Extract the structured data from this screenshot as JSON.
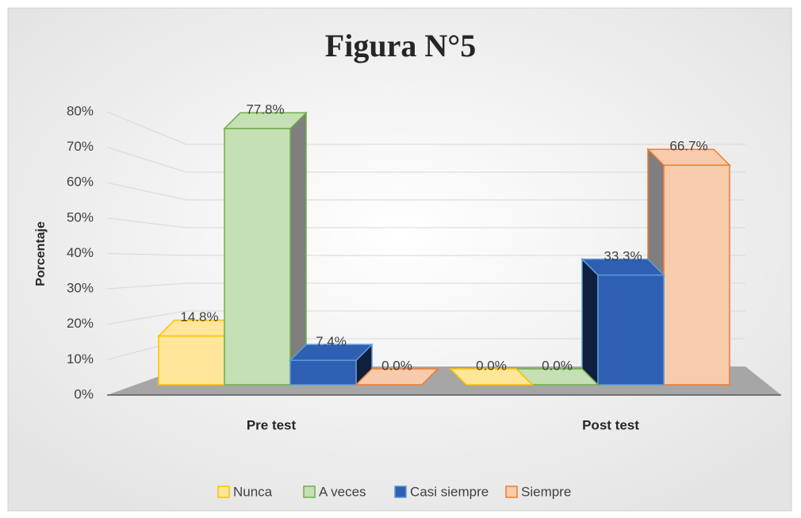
{
  "chart_data": {
    "type": "bar3d",
    "title": "Figura N°5",
    "y_label": "Porcentaje",
    "categories": [
      "Pre test",
      "Post test"
    ],
    "series": [
      {
        "name": "Nunca",
        "color": "#ffc000",
        "fill": "#ffe699",
        "values": [
          14.8,
          0.0
        ],
        "value_labels": [
          "14.8%",
          "0.0%"
        ]
      },
      {
        "name": "A veces",
        "color": "#70ad47",
        "fill": "#c5e0b4",
        "values": [
          77.8,
          0.0
        ],
        "value_labels": [
          "77.8%",
          "0.0%"
        ]
      },
      {
        "name": "Casi siempre",
        "color": "#5b9bd5",
        "fill": "#2f5fb3",
        "values": [
          7.4,
          33.3
        ],
        "value_labels": [
          "7.4%",
          "33.3%"
        ]
      },
      {
        "name": "Siempre",
        "color": "#ed7d31",
        "fill": "#f8cbad",
        "values": [
          0.0,
          66.7
        ],
        "value_labels": [
          "0.0%",
          "66.7%"
        ]
      }
    ],
    "ylim": [
      0,
      80
    ],
    "yticks": [
      {
        "value": 0,
        "label": "0%"
      },
      {
        "value": 10,
        "label": "10%"
      },
      {
        "value": 20,
        "label": "20%"
      },
      {
        "value": 30,
        "label": "30%"
      },
      {
        "value": 40,
        "label": "40%"
      },
      {
        "value": 50,
        "label": "50%"
      },
      {
        "value": 60,
        "label": "60%"
      },
      {
        "value": 70,
        "label": "70%"
      },
      {
        "value": 80,
        "label": "80%"
      }
    ],
    "grid": true,
    "legend": "bottom"
  }
}
